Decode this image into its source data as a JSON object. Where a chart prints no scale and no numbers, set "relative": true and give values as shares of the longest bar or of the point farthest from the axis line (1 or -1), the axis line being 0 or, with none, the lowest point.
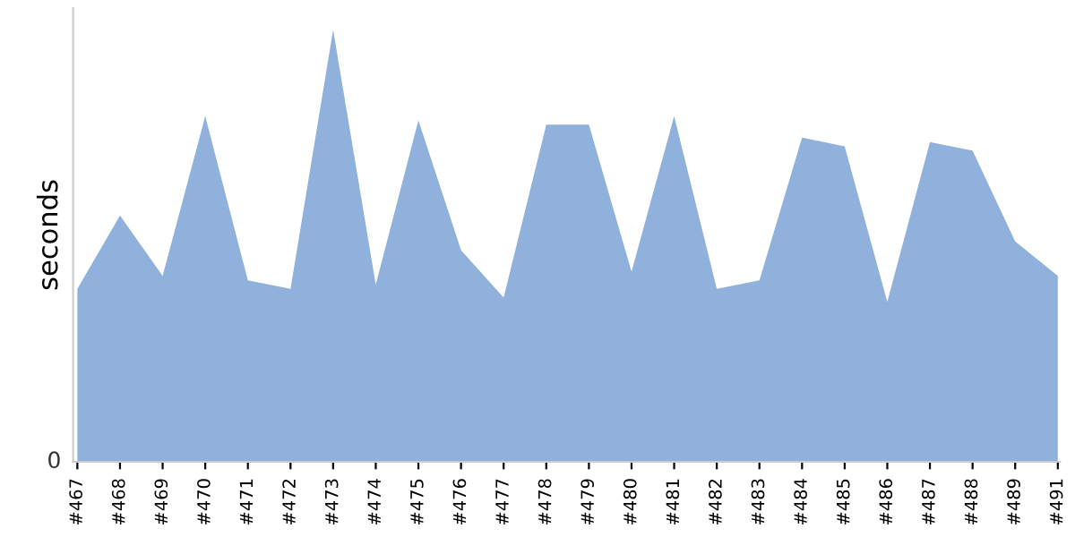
{
  "chart_data": {
    "type": "area",
    "ylabel": "seconds",
    "relative": true,
    "annotations": [
      "0"
    ],
    "grid": false,
    "categories": [
      "#467",
      "#468",
      "#469",
      "#470",
      "#471",
      "#472",
      "#473",
      "#474",
      "#475",
      "#476",
      "#477",
      "#478",
      "#479",
      "#480",
      "#481",
      "#482",
      "#483",
      "#484",
      "#485",
      "#486",
      "#487",
      "#488",
      "#489",
      "#491"
    ],
    "series": [
      {
        "color": "#8fb1db",
        "values": [
          0.4,
          0.57,
          0.43,
          0.8,
          0.42,
          0.4,
          1,
          0.41,
          0.79,
          0.49,
          0.38,
          0.78,
          0.78,
          0.44,
          0.8,
          0.4,
          0.42,
          0.75,
          0.73,
          0.37,
          0.74,
          0.72,
          0.51,
          0.43
        ]
      }
    ]
  }
}
